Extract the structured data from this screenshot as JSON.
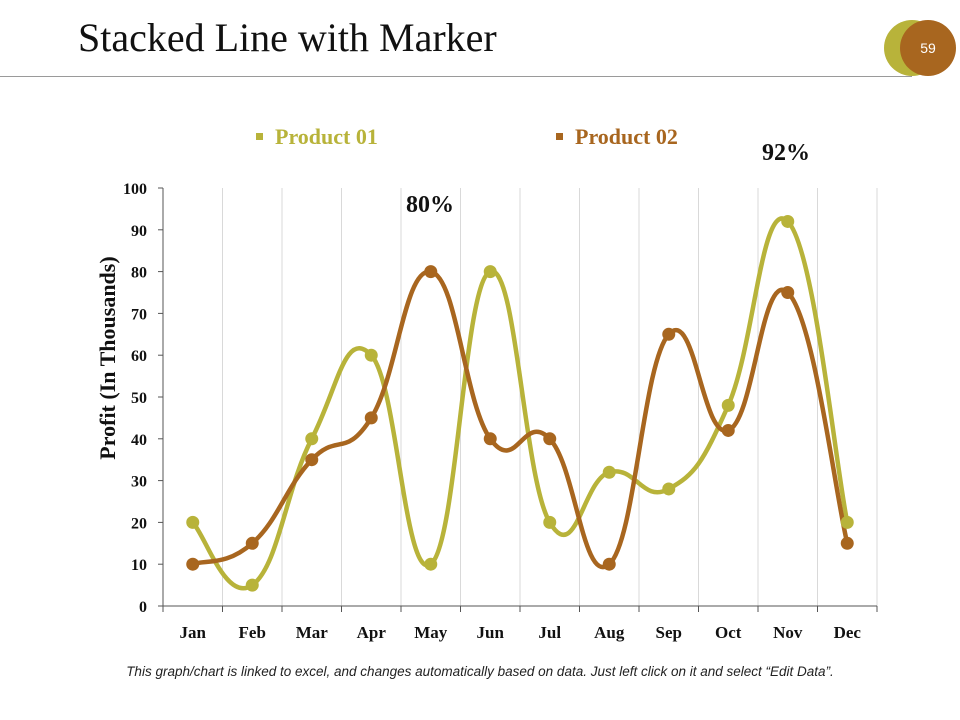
{
  "slide": {
    "title": "Stacked Line with Marker",
    "page_number": "59",
    "footnote": "This graph/chart is linked to excel, and changes automatically based on data. Just left click on it and select “Edit Data”.",
    "callouts": [
      "80%",
      "92%"
    ]
  },
  "chart_data": {
    "type": "line",
    "title": "",
    "xlabel": "",
    "ylabel": "Profit (In Thousands)",
    "ylim": [
      0,
      100
    ],
    "yticks": [
      0,
      10,
      20,
      30,
      40,
      50,
      60,
      70,
      80,
      90,
      100
    ],
    "categories": [
      "Jan",
      "Feb",
      "Mar",
      "Apr",
      "May",
      "Jun",
      "Jul",
      "Aug",
      "Sep",
      "Oct",
      "Nov",
      "Dec"
    ],
    "legend_position": "top",
    "grid": "vertical",
    "smooth": true,
    "series": [
      {
        "name": "Product 01",
        "color": "#b8b33a",
        "values": [
          20,
          5,
          40,
          60,
          10,
          80,
          20,
          32,
          28,
          48,
          92,
          20
        ]
      },
      {
        "name": "Product 02",
        "color": "#a8661f",
        "values": [
          10,
          15,
          35,
          45,
          80,
          40,
          40,
          10,
          65,
          42,
          75,
          15
        ]
      }
    ]
  }
}
